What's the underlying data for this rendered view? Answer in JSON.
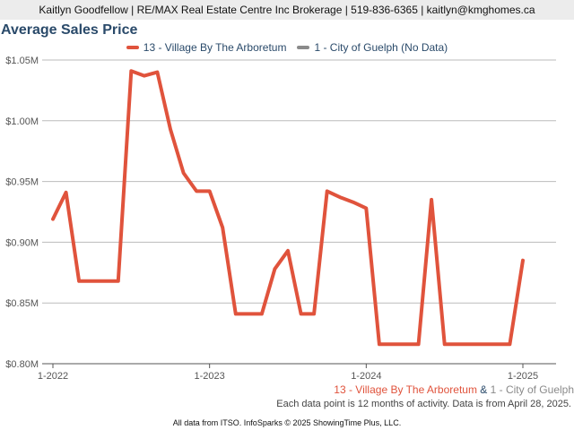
{
  "header": {
    "contact_line": "Kaitlyn Goodfellow | RE/MAX Real Estate Centre Inc Brokerage | 519-836-6365 | kaitlyn@kmghomes.ca"
  },
  "subline": {
    "series1": "13 - Village By The Arboretum",
    "amp": " & ",
    "series2": "1 - City of Guelph"
  },
  "note": "Each data point is 12 months of activity. Data is from April 28, 2025.",
  "footer": "All data from ITSO. InfoSparks © 2025 ShowingTime Plus, LLC.",
  "colors": {
    "series1": "#e0533c",
    "series2": "#8a8a8a",
    "title": "#2a4a6a",
    "grid": "#bbbbbb"
  },
  "chart_data": {
    "type": "line",
    "title": "Average Sales Price",
    "xlabel": "",
    "ylabel": "",
    "ylim": [
      800000,
      1050000
    ],
    "yticks": [
      800000,
      850000,
      900000,
      950000,
      1000000,
      1050000
    ],
    "ytick_labels": [
      "$0.80M",
      "$0.85M",
      "$0.90M",
      "$0.95M",
      "$1.00M",
      "$1.05M"
    ],
    "xlim": [
      "2022-01",
      "2025-03"
    ],
    "xticks": [
      "2022-01",
      "2023-01",
      "2024-01",
      "2025-01"
    ],
    "xtick_labels": [
      "1-2022",
      "1-2023",
      "1-2024",
      "1-2025"
    ],
    "legend_position": "top-center",
    "grid": true,
    "series": [
      {
        "name": "13 - Village By The Arboretum",
        "x": [
          "2022-01",
          "2022-02",
          "2022-03",
          "2022-04",
          "2022-05",
          "2022-06",
          "2022-07",
          "2022-08",
          "2022-09",
          "2022-10",
          "2022-11",
          "2022-12",
          "2023-01",
          "2023-02",
          "2023-03",
          "2023-04",
          "2023-05",
          "2023-06",
          "2023-07",
          "2023-08",
          "2023-09",
          "2023-10",
          "2023-11",
          "2023-12",
          "2024-01",
          "2024-02",
          "2024-03",
          "2024-04",
          "2024-05",
          "2024-06",
          "2024-07",
          "2024-08",
          "2024-09",
          "2024-10",
          "2024-11",
          "2024-12",
          "2025-01"
        ],
        "values": [
          919000,
          941000,
          868000,
          868000,
          868000,
          868000,
          1041000,
          1037000,
          1040000,
          993000,
          957000,
          942000,
          942000,
          912000,
          841000,
          841000,
          841000,
          878000,
          893000,
          841000,
          841000,
          942000,
          937000,
          933000,
          928000,
          816000,
          816000,
          816000,
          816000,
          935000,
          816000,
          816000,
          816000,
          816000,
          816000,
          816000,
          885000
        ]
      },
      {
        "name": "1 - City of Guelph (No Data)",
        "x": [],
        "values": []
      }
    ]
  }
}
